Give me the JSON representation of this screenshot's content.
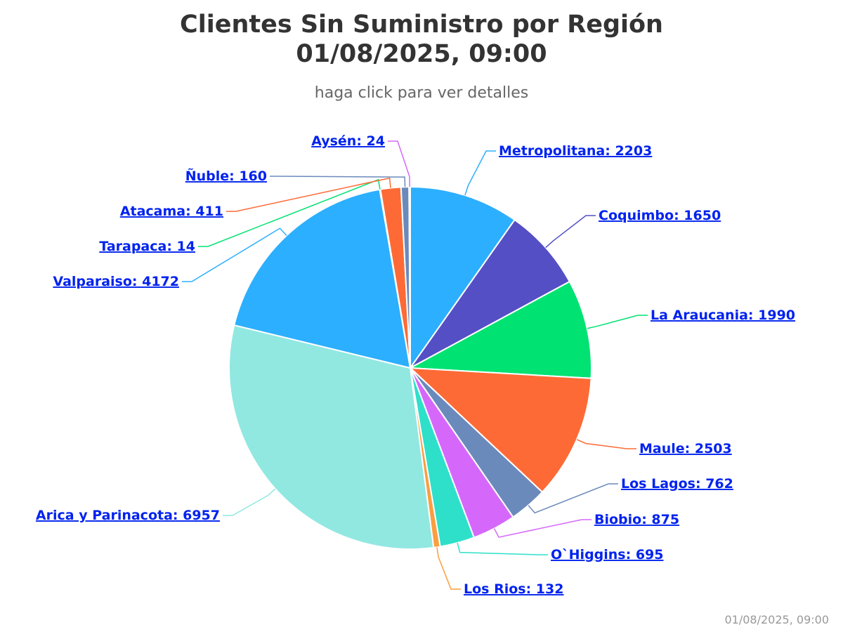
{
  "chart_data": {
    "type": "pie",
    "title": "Clientes Sin Suministro por Región",
    "title_line2": "01/08/2025, 09:00",
    "subtitle": "haga click para ver detalles",
    "series": [
      {
        "name": "Metropolitana",
        "value": 2203,
        "color": "#2caffe"
      },
      {
        "name": "Coquimbo",
        "value": 1650,
        "color": "#544fc5"
      },
      {
        "name": "La Araucania",
        "value": 1990,
        "color": "#00e272"
      },
      {
        "name": "Maule",
        "value": 2503,
        "color": "#fe6a35"
      },
      {
        "name": "Los Lagos",
        "value": 762,
        "color": "#6b8abc"
      },
      {
        "name": "Biobio",
        "value": 875,
        "color": "#d568fb"
      },
      {
        "name": "O`Higgins",
        "value": 695,
        "color": "#2ee0ca"
      },
      {
        "name": "Los Rios",
        "value": 132,
        "color": "#fa9e41"
      },
      {
        "name": "Arica y Parinacota",
        "value": 6957,
        "color": "#91e8e1"
      },
      {
        "name": "Valparaiso",
        "value": 4172,
        "color": "#2caffe"
      },
      {
        "name": "Tarapaca",
        "value": 14,
        "color": "#00e272"
      },
      {
        "name": "Atacama",
        "value": 411,
        "color": "#fe6a35"
      },
      {
        "name": "Ñuble",
        "value": 160,
        "color": "#6b8abc"
      },
      {
        "name": "Aysén",
        "value": 24,
        "color": "#d568fb"
      }
    ],
    "legend": "none",
    "data_labels": "name: value"
  },
  "credit": "01/08/2025, 09:00"
}
